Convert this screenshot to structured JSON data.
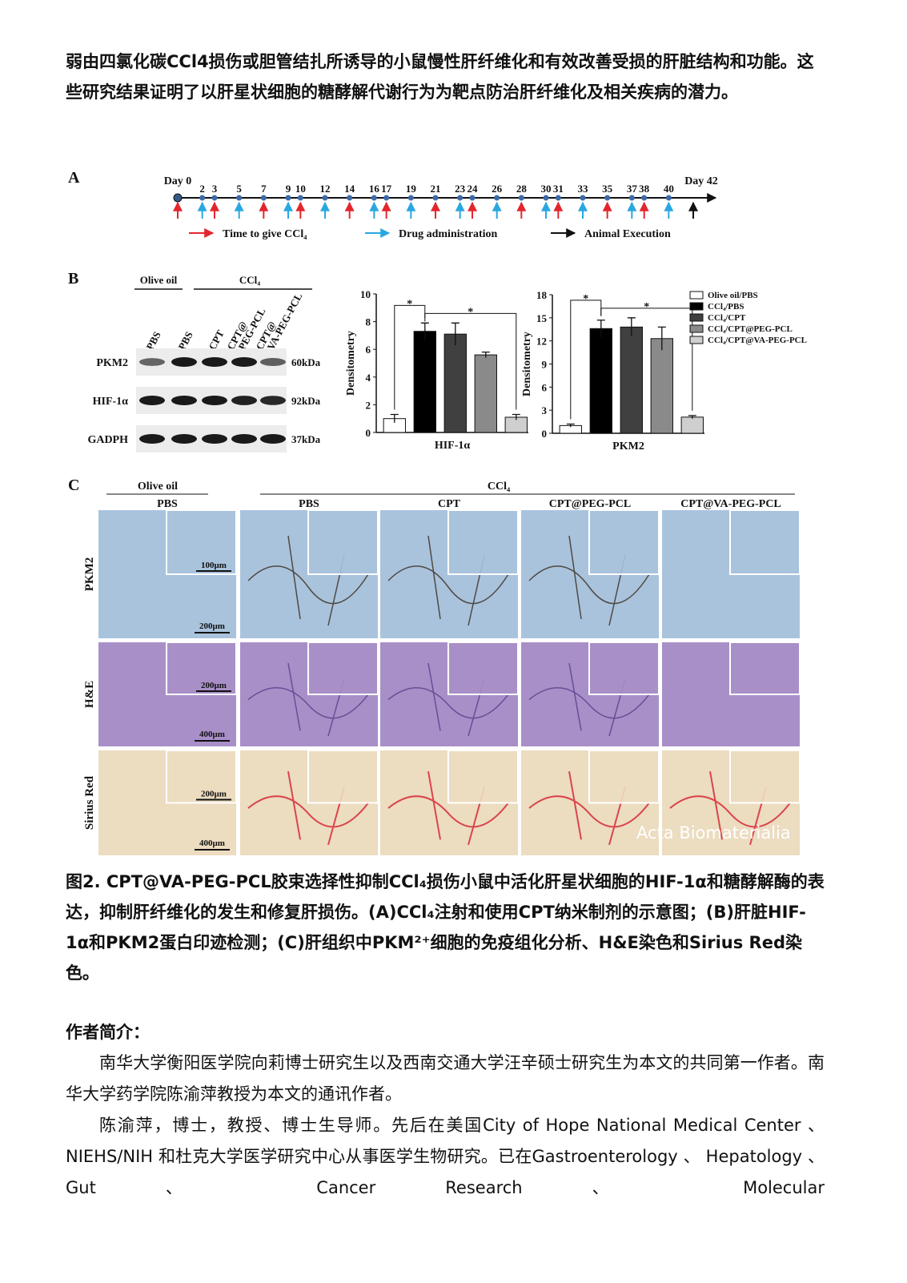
{
  "intro": "弱由四氯化碳CCl4损伤或胆管结扎所诱导的小鼠慢性肝纤维化和有效改善受损的肝脏结构和功能。这些研究结果证明了以肝星状细胞的糖酵解代谢行为为靶点防治肝纤维化及相关疾病的潜力。",
  "figure": {
    "panel_a": {
      "label": "A",
      "xlim": [
        0,
        42
      ],
      "start": {
        "label": "Day 0",
        "kind": "ccl4"
      },
      "end": {
        "label": "Day 42",
        "kind": "execution"
      },
      "days": [
        {
          "day": 2,
          "kind": "drug"
        },
        {
          "day": 3,
          "kind": "ccl4"
        },
        {
          "day": 5,
          "kind": "drug"
        },
        {
          "day": 7,
          "kind": "ccl4"
        },
        {
          "day": 9,
          "kind": "drug"
        },
        {
          "day": 10,
          "kind": "ccl4"
        },
        {
          "day": 12,
          "kind": "drug"
        },
        {
          "day": 14,
          "kind": "ccl4"
        },
        {
          "day": 16,
          "kind": "drug"
        },
        {
          "day": 17,
          "kind": "ccl4"
        },
        {
          "day": 19,
          "kind": "drug"
        },
        {
          "day": 21,
          "kind": "ccl4"
        },
        {
          "day": 23,
          "kind": "drug"
        },
        {
          "day": 24,
          "kind": "ccl4"
        },
        {
          "day": 26,
          "kind": "drug"
        },
        {
          "day": 28,
          "kind": "ccl4"
        },
        {
          "day": 30,
          "kind": "drug"
        },
        {
          "day": 31,
          "kind": "ccl4"
        },
        {
          "day": 33,
          "kind": "drug"
        },
        {
          "day": 35,
          "kind": "ccl4"
        },
        {
          "day": 37,
          "kind": "drug"
        },
        {
          "day": 38,
          "kind": "ccl4"
        },
        {
          "day": 40,
          "kind": "drug"
        }
      ],
      "legend": [
        {
          "kind": "ccl4",
          "text": "Time to give CCl₄",
          "color": "#e3262d"
        },
        {
          "kind": "drug",
          "text": "Drug administration",
          "color": "#2aa7e0"
        },
        {
          "kind": "execution",
          "text": "Animal Execution",
          "color": "#111111"
        }
      ]
    },
    "panel_b": {
      "label": "B",
      "group_olive": "Olive oil",
      "group_ccl4": "CCl₄",
      "lanes": [
        [
          "PBS"
        ],
        [
          "PBS"
        ],
        [
          "CPT"
        ],
        [
          "CPT@",
          "PEG-PCL"
        ],
        [
          "CPT@",
          "VA-PEG-PCL"
        ]
      ],
      "rows": [
        {
          "name": "PKM2",
          "size": "60kDa"
        },
        {
          "name": "HIF-1α",
          "size": "92kDa"
        },
        {
          "name": "GADPH",
          "size": "37kDa"
        }
      ],
      "legend": [
        {
          "name": "Olive oil/PBS",
          "color": "#ffffff"
        },
        {
          "name": "CCl₄/PBS",
          "color": "#000000"
        },
        {
          "name": "CCl₄/CPT",
          "color": "#404040"
        },
        {
          "name": "CCl₄/CPT@PEG-PCL",
          "color": "#8a8a8a"
        },
        {
          "name": "CCl₄/CPT@VA-PEG-PCL",
          "color": "#cfcfcf"
        }
      ],
      "charts": [
        {
          "type": "bar",
          "ylabel": "Densitometry",
          "xlabel": "HIF-1α",
          "ylim": [
            0,
            10
          ],
          "yticks": [
            0,
            2,
            4,
            6,
            8,
            10
          ],
          "values": [
            1.0,
            7.3,
            7.1,
            5.6,
            1.1
          ],
          "errors": [
            0.3,
            0.6,
            0.8,
            0.2,
            0.2
          ],
          "significance": [
            "*",
            "*"
          ]
        },
        {
          "type": "bar",
          "ylabel": "Densitometry",
          "xlabel": "PKM2",
          "ylim": [
            0,
            18
          ],
          "yticks": [
            0,
            3,
            6,
            9,
            12,
            15,
            18
          ],
          "values": [
            1.0,
            13.6,
            13.8,
            12.3,
            2.1
          ],
          "errors": [
            0.2,
            1.1,
            1.2,
            1.5,
            0.2
          ],
          "significance": [
            "*",
            "*"
          ]
        }
      ]
    },
    "panel_c": {
      "label": "C",
      "group_olive": "Olive oil",
      "group_ccl4": "CCl₄",
      "columns": [
        "PBS",
        "PBS",
        "CPT",
        "CPT@PEG-PCL",
        "CPT@VA-PEG-PCL"
      ],
      "rows": [
        {
          "name": "PKM2",
          "inset_scale": "100μm",
          "scale": "200μm",
          "color": "#a9c3dd"
        },
        {
          "name": "H&E",
          "inset_scale": "200μm",
          "scale": "400μm",
          "color": "#a98fc8"
        },
        {
          "name": "Sirius Red",
          "inset_scale": "200μm",
          "scale": "400μm",
          "color": "#ecdcc0"
        }
      ],
      "watermark": "Acta Biomaterialia"
    }
  },
  "caption": "图2. CPT@VA-PEG-PCL胶束选择性抑制CCl₄损伤小鼠中活化肝星状细胞的HIF-1α和糖酵解酶的表达，抑制肝纤维化的发生和修复肝损伤。(A)CCl₄注射和使用CPT纳米制剂的示意图；(B)肝脏HIF-1α和PKM2蛋白印迹检测；(C)肝组织中PKM²⁺细胞的免疫组化分析、H&E染色和Sirius Red染色。",
  "authors": {
    "heading": "作者简介：",
    "paragraphs": [
      "南华大学衡阳医学院向莉博士研究生以及西南交通大学汪辛硕士研究生为本文的共同第一作者。南华大学药学院陈渝萍教授为本文的通讯作者。",
      "陈渝萍，博士，教授、博士生导师。先后在美国City of Hope National Medical Center 、 NIEHS/NIH 和杜克大学医学研究中心从事医学生物研究。已在Gastroenterology 、 Hepatology 、 Gut 、 Cancer Research 、 Molecular"
    ]
  }
}
